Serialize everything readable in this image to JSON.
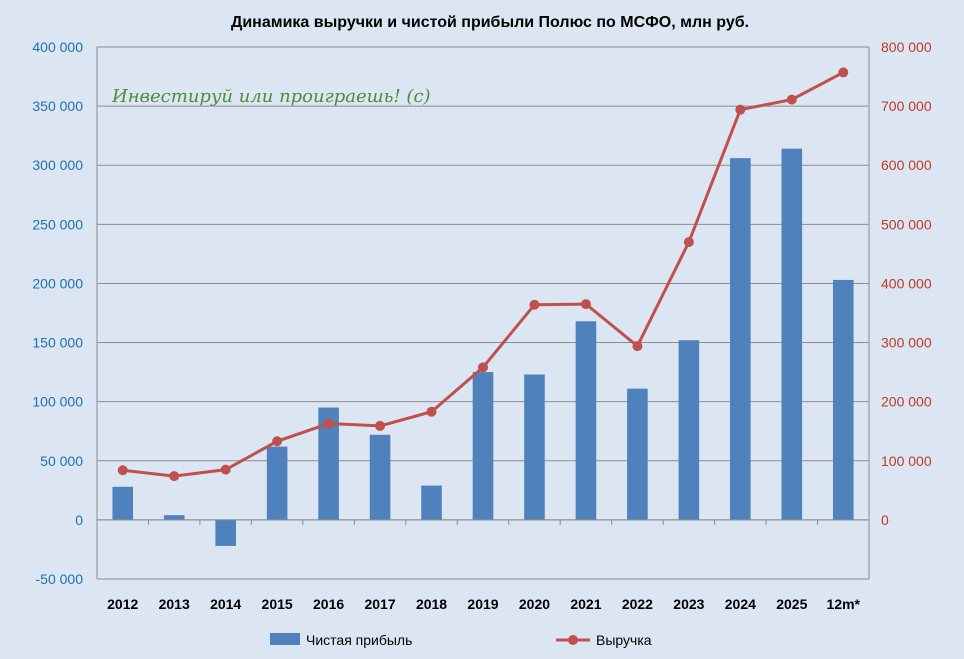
{
  "chart_data": {
    "type": "bar",
    "title": "Динамика выручки и чистой прибыли Полюс по МСФО, млн руб.",
    "watermark": "Инвестируй или проиграешь! (с)",
    "categories": [
      "2012",
      "2013",
      "2014",
      "2015",
      "2016",
      "2017",
      "2018",
      "2019",
      "2020",
      "2021",
      "2022",
      "2023",
      "2024",
      "2025",
      "12m*"
    ],
    "series": [
      {
        "name": "Чистая прибыль",
        "kind": "bar",
        "axis": "left",
        "color": "#4f81bd",
        "values": [
          28000,
          4000,
          -22000,
          62000,
          95000,
          72000,
          29000,
          125000,
          123000,
          168000,
          111000,
          152000,
          306000,
          314000,
          203000
        ]
      },
      {
        "name": "Выручка",
        "kind": "line",
        "axis": "right",
        "color": "#c0504d",
        "values": [
          84000,
          74000,
          85000,
          133000,
          163000,
          159000,
          183000,
          258000,
          364000,
          365000,
          294000,
          470000,
          694000,
          711000,
          757000
        ]
      }
    ],
    "y_left": {
      "min": -50000,
      "max": 400000,
      "ticks": [
        -50000,
        0,
        50000,
        100000,
        150000,
        200000,
        250000,
        300000,
        350000,
        400000
      ],
      "tick_labels": [
        "-50 000",
        "0",
        "50 000",
        "100 000",
        "150 000",
        "200 000",
        "250 000",
        "300 000",
        "350 000",
        "400 000"
      ],
      "color": "#1f6fb0"
    },
    "y_right": {
      "min": -100000,
      "max": 800000,
      "ticks": [
        0,
        100000,
        200000,
        300000,
        400000,
        500000,
        600000,
        700000,
        800000
      ],
      "tick_labels": [
        "0",
        "100 000",
        "200 000",
        "300 000",
        "400 000",
        "500 000",
        "600 000",
        "700 000",
        "800 000"
      ],
      "color": "#c0392b"
    },
    "grid": true,
    "legend": "bottom"
  }
}
